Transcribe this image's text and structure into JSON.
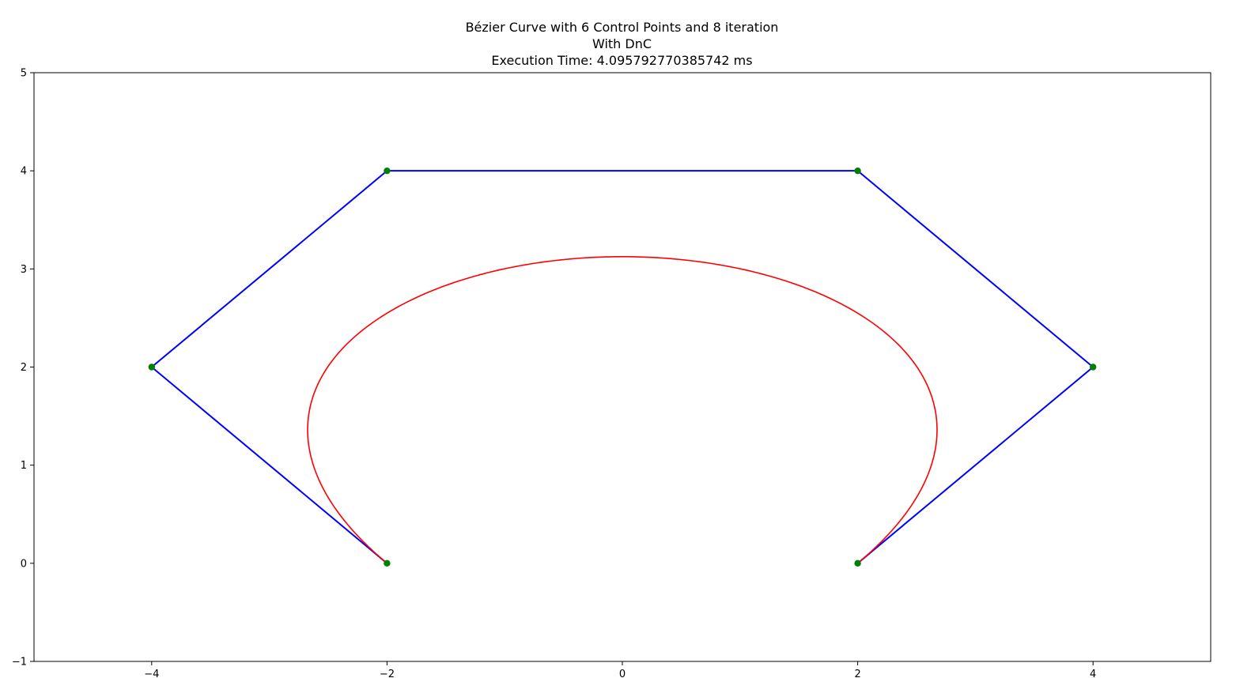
{
  "chart_data": {
    "type": "line",
    "title_lines": [
      "Bézier Curve with 6 Control Points and 8 iteration",
      "With DnC",
      "Execution Time: 4.095792770385742 ms"
    ],
    "xlabel": "",
    "ylabel": "",
    "xlim": [
      -5,
      5
    ],
    "ylim": [
      -1,
      5
    ],
    "xticks": [
      -4,
      -2,
      0,
      2,
      4
    ],
    "xtick_labels": [
      "−4",
      "−2",
      "0",
      "2",
      "4"
    ],
    "yticks": [
      -1,
      0,
      1,
      2,
      3,
      4,
      5
    ],
    "ytick_labels": [
      "−1",
      "0",
      "1",
      "2",
      "3",
      "4",
      "5"
    ],
    "grid": false,
    "control_points": [
      [
        -2,
        0
      ],
      [
        -4,
        2
      ],
      [
        -2,
        4
      ],
      [
        2,
        4
      ],
      [
        4,
        2
      ],
      [
        2,
        0
      ]
    ],
    "curve_iterations": 8,
    "colors": {
      "control_polygon": "#0000ff",
      "control_points": "#008000",
      "curve": "#ff0000"
    }
  }
}
